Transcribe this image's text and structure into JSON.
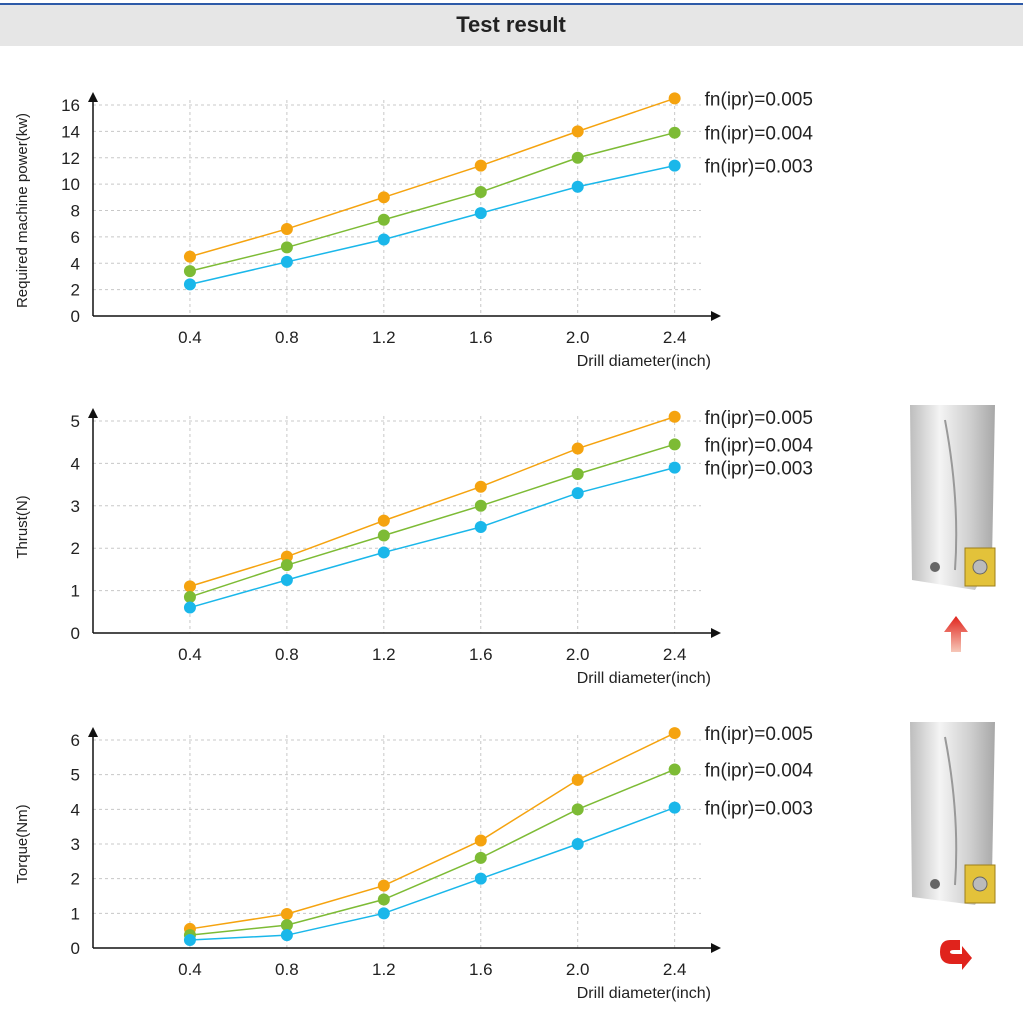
{
  "header": {
    "title": "Test result"
  },
  "chart_data": [
    {
      "type": "line",
      "x_label": "Drill diameter(inch)",
      "y_label": "Required machine power(kw)",
      "x": [
        0.4,
        0.8,
        1.2,
        1.6,
        2,
        2.4
      ],
      "xlim": [
        0,
        2.55
      ],
      "xticks": [
        0.4,
        0.8,
        1.2,
        1.6,
        {
          "value": 2,
          "label": "2.0"
        },
        2.4
      ],
      "ylim": [
        0,
        16
      ],
      "yticks": [
        0,
        2,
        4,
        6,
        8,
        10,
        12,
        14,
        16
      ],
      "grid": true,
      "series": [
        {
          "name": "fn(ipr)=0.005",
          "color": "#f5a30f",
          "values": [
            4.5,
            6.6,
            9.0,
            11.4,
            14.0,
            16.5
          ]
        },
        {
          "name": "fn(ipr)=0.004",
          "color": "#7dbb35",
          "values": [
            3.4,
            5.2,
            7.3,
            9.4,
            12.0,
            13.9
          ]
        },
        {
          "name": "fn(ipr)=0.003",
          "color": "#1ab7ea",
          "values": [
            2.4,
            4.1,
            5.8,
            7.8,
            9.8,
            11.4
          ]
        }
      ]
    },
    {
      "type": "line",
      "x_label": "Drill diameter(inch)",
      "y_label": "Thrust(N)",
      "x": [
        0.4,
        0.8,
        1.2,
        1.6,
        2,
        2.4
      ],
      "xlim": [
        0,
        2.55
      ],
      "xticks": [
        0.4,
        0.8,
        1.2,
        1.6,
        {
          "value": 2,
          "label": "2.0"
        },
        2.4
      ],
      "ylim": [
        0,
        5
      ],
      "yticks": [
        0,
        1,
        2,
        3,
        4,
        5
      ],
      "grid": true,
      "series": [
        {
          "name": "fn(ipr)=0.005",
          "color": "#f5a30f",
          "values": [
            1.1,
            1.8,
            2.65,
            3.45,
            4.35,
            5.1
          ]
        },
        {
          "name": "fn(ipr)=0.004",
          "color": "#7dbb35",
          "values": [
            0.85,
            1.6,
            2.3,
            3.0,
            3.75,
            4.45
          ]
        },
        {
          "name": "fn(ipr)=0.003",
          "color": "#1ab7ea",
          "values": [
            0.6,
            1.25,
            1.9,
            2.5,
            3.3,
            3.9
          ]
        }
      ]
    },
    {
      "type": "line",
      "x_label": "Drill diameter(inch)",
      "y_label": "Torque(Nm)",
      "x": [
        0.4,
        0.8,
        1.2,
        1.6,
        2,
        2.4
      ],
      "xlim": [
        0,
        2.55
      ],
      "xticks": [
        0.4,
        0.8,
        1.2,
        1.6,
        {
          "value": 2,
          "label": "2.0"
        },
        2.4
      ],
      "ylim": [
        0,
        6
      ],
      "yticks": [
        0,
        1,
        2,
        3,
        4,
        5,
        6
      ],
      "grid": true,
      "series": [
        {
          "name": "fn(ipr)=0.005",
          "color": "#f5a30f",
          "values": [
            0.55,
            0.98,
            1.8,
            3.1,
            4.85,
            6.2
          ]
        },
        {
          "name": "fn(ipr)=0.004",
          "color": "#7dbb35",
          "values": [
            0.37,
            0.66,
            1.4,
            2.6,
            4.0,
            5.15
          ]
        },
        {
          "name": "fn(ipr)=0.003",
          "color": "#1ab7ea",
          "values": [
            0.23,
            0.37,
            1.0,
            2.0,
            3.0,
            4.05
          ]
        }
      ]
    }
  ]
}
